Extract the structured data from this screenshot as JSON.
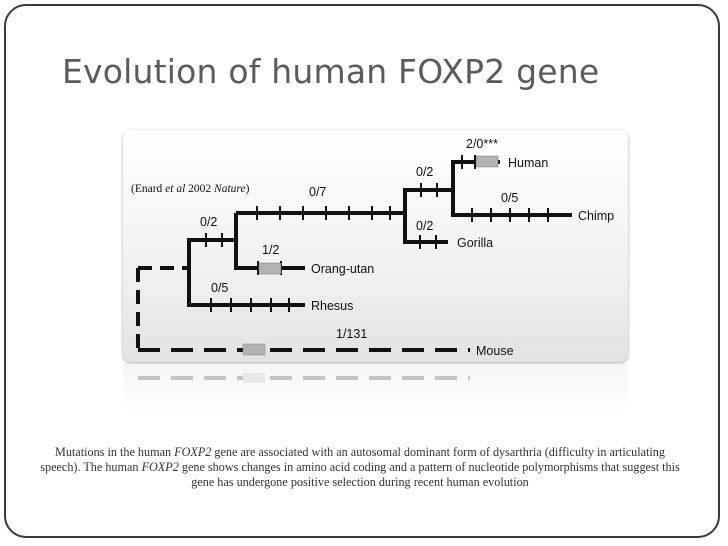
{
  "slide": {
    "title": "Evolution of human FOXP2 gene"
  },
  "figure": {
    "citation": {
      "prefix": "(Enard ",
      "et_al": "et al",
      "year": " 2002 ",
      "journal": "Nature",
      "suffix": ")"
    },
    "species": {
      "human": "Human",
      "chimp": "Chimp",
      "gorilla": "Gorilla",
      "orangutan": "Orang-utan",
      "rhesus": "Rhesus",
      "mouse": "Mouse"
    },
    "branch_labels": {
      "human": "2/0***",
      "chimp": "0/5",
      "human_chimp_stem": "0/2",
      "gorilla": "0/2",
      "great_ape_stem": "0/7",
      "ape_stem": "0/2",
      "orangutan": "1/2",
      "rhesus": "0/5",
      "mouse": "1/131"
    },
    "colors": {
      "branch": "#111111",
      "replacement_box": "#b3b3b3"
    }
  },
  "caption": {
    "part1": "Mutations in the human ",
    "gene1": "FOXP2",
    "part2": " gene are associated with an autosomal dominant form of dysarthria (difficulty in articulating speech). The human ",
    "gene2": "FOXP2",
    "part3": " gene shows changes in amino acid coding and a pattern of nucleotide polymorphisms that suggest this gene has undergone positive selection during recent human evolution"
  }
}
